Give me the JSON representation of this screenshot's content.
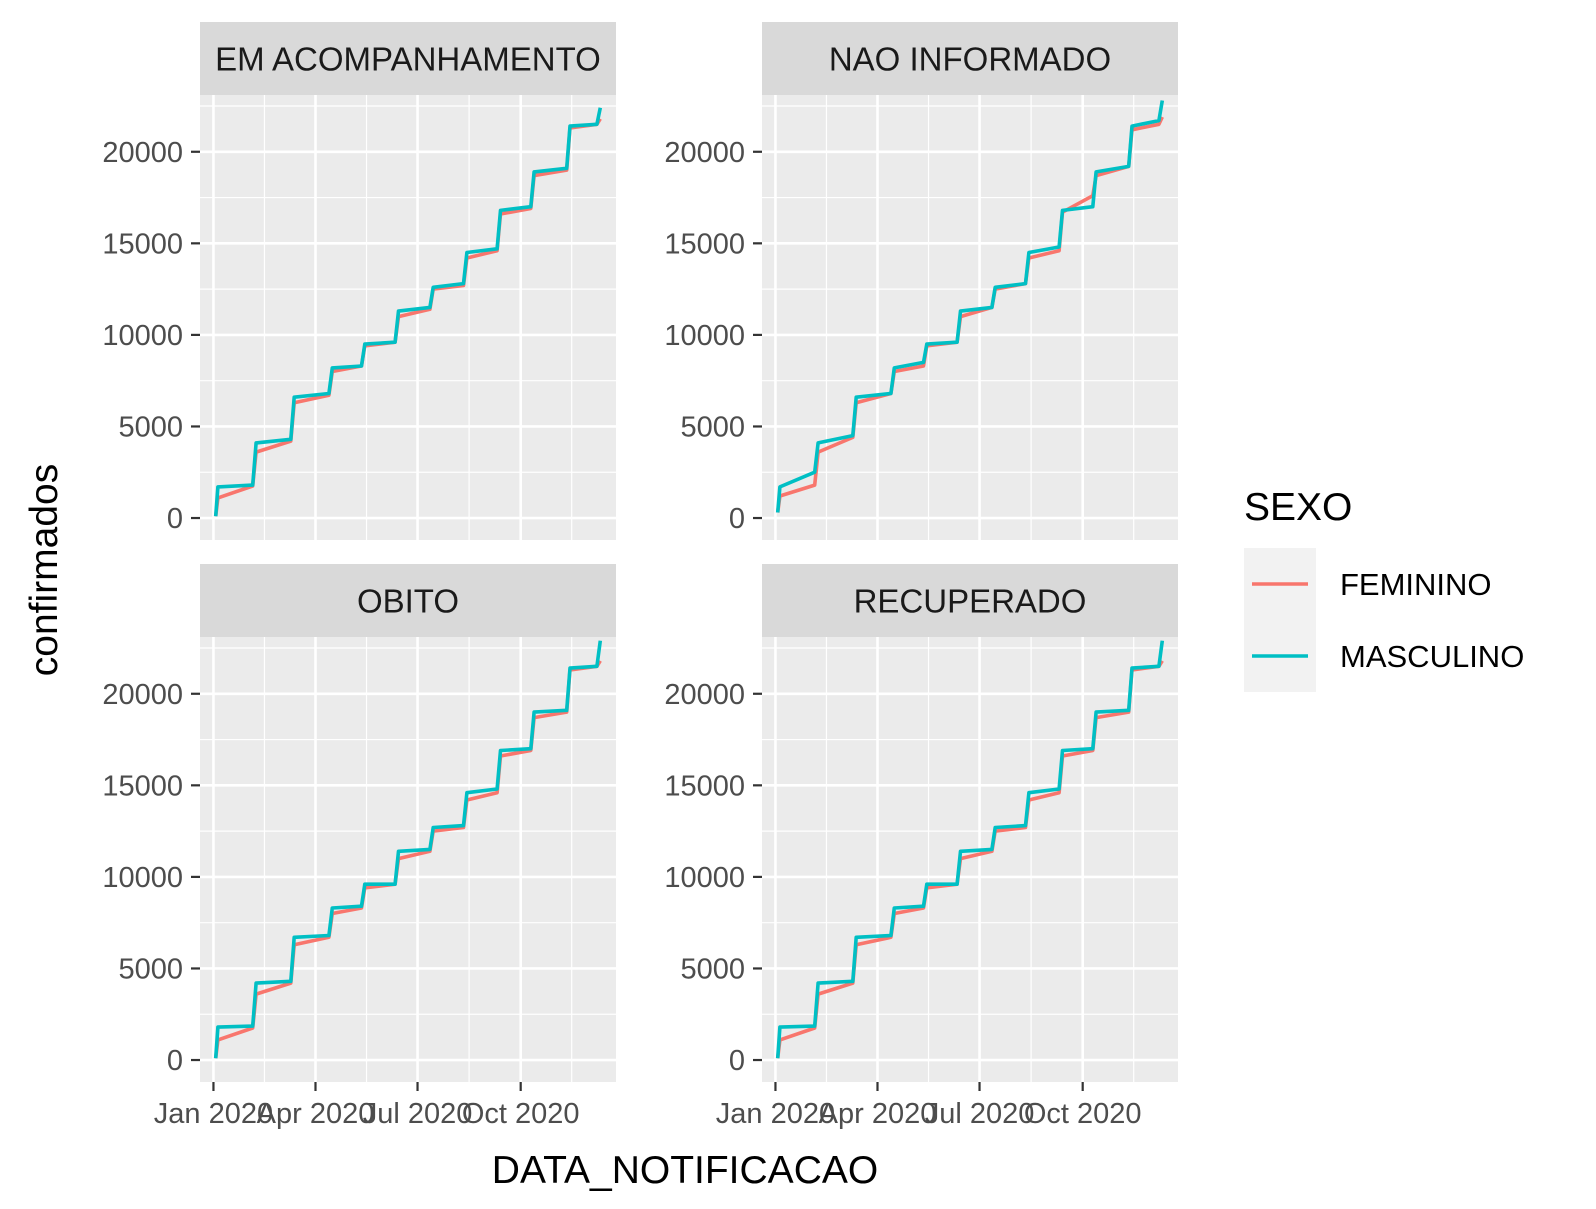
{
  "chart_data": {
    "type": "line",
    "xlabel": "DATA_NOTIFICACAO",
    "ylabel": "confirmados",
    "x_ticks": [
      "Jan 2020",
      "Apr 2020",
      "Jul 2020",
      "Oct 2020"
    ],
    "x_tick_dates": [
      "2020-01-01",
      "2020-04-01",
      "2020-07-01",
      "2020-10-01"
    ],
    "xlim": [
      "2019-12-20",
      "2020-12-25"
    ],
    "y_ticks": [
      0,
      5000,
      10000,
      15000,
      20000
    ],
    "ylim": [
      -1200,
      23100
    ],
    "grid": true,
    "legend": {
      "title": "SEXO",
      "position": "right"
    },
    "colors": {
      "FEMININO": "#F8766D",
      "MASCULINO": "#00BFC4",
      "panel_bg": "#EBEBEB",
      "strip_bg": "#D9D9D9",
      "grid": "#FFFFFF"
    },
    "x": [
      "2020-01-03",
      "2020-01-05",
      "2020-02-05",
      "2020-02-08",
      "2020-03-10",
      "2020-03-13",
      "2020-04-13",
      "2020-04-16",
      "2020-05-12",
      "2020-05-15",
      "2020-06-11",
      "2020-06-14",
      "2020-07-12",
      "2020-07-15",
      "2020-08-11",
      "2020-08-14",
      "2020-09-10",
      "2020-09-13",
      "2020-10-10",
      "2020-10-13",
      "2020-11-11",
      "2020-11-14",
      "2020-12-08",
      "2020-12-11"
    ],
    "panels": [
      {
        "title": "EM ACOMPANHAMENTO",
        "series": [
          {
            "name": "FEMININO",
            "values": [
              100,
              1100,
              1750,
              3600,
              4200,
              6300,
              6700,
              8000,
              8300,
              9400,
              9600,
              11000,
              11400,
              12500,
              12700,
              14200,
              14600,
              16600,
              16900,
              18700,
              19000,
              21300,
              21500,
              21800
            ]
          },
          {
            "name": "MASCULINO",
            "values": [
              100,
              1700,
              1800,
              4100,
              4300,
              6600,
              6800,
              8200,
              8300,
              9500,
              9600,
              11300,
              11500,
              12600,
              12800,
              14500,
              14700,
              16800,
              17000,
              18900,
              19100,
              21400,
              21500,
              22400
            ]
          }
        ]
      },
      {
        "title": "NAO INFORMADO",
        "series": [
          {
            "name": "FEMININO",
            "values": [
              300,
              1200,
              1800,
              3600,
              4400,
              6300,
              6800,
              8000,
              8300,
              9400,
              9600,
              11000,
              11500,
              12500,
              12800,
              14200,
              14600,
              16700,
              17600,
              18700,
              19200,
              21200,
              21500,
              21900
            ]
          },
          {
            "name": "MASCULINO",
            "values": [
              300,
              1700,
              2500,
              4100,
              4500,
              6600,
              6800,
              8200,
              8500,
              9500,
              9600,
              11300,
              11500,
              12600,
              12800,
              14500,
              14800,
              16800,
              17000,
              18900,
              19200,
              21400,
              21700,
              22800
            ]
          }
        ]
      },
      {
        "title": "OBITO",
        "series": [
          {
            "name": "FEMININO",
            "values": [
              100,
              1100,
              1750,
              3600,
              4200,
              6300,
              6700,
              8000,
              8300,
              9400,
              9600,
              11000,
              11400,
              12500,
              12700,
              14200,
              14600,
              16600,
              16900,
              18700,
              19000,
              21300,
              21500,
              21800
            ]
          },
          {
            "name": "MASCULINO",
            "values": [
              100,
              1800,
              1850,
              4200,
              4300,
              6700,
              6800,
              8300,
              8400,
              9600,
              9600,
              11400,
              11500,
              12700,
              12800,
              14600,
              14800,
              16900,
              17000,
              19000,
              19100,
              21400,
              21500,
              22900
            ]
          }
        ]
      },
      {
        "title": "RECUPERADO",
        "series": [
          {
            "name": "FEMININO",
            "values": [
              100,
              1100,
              1750,
              3600,
              4200,
              6300,
              6700,
              8000,
              8300,
              9400,
              9600,
              11000,
              11400,
              12500,
              12700,
              14200,
              14600,
              16600,
              16900,
              18700,
              19000,
              21300,
              21500,
              21800
            ]
          },
          {
            "name": "MASCULINO",
            "values": [
              100,
              1800,
              1850,
              4200,
              4300,
              6700,
              6800,
              8300,
              8400,
              9600,
              9600,
              11400,
              11500,
              12700,
              12800,
              14600,
              14800,
              16900,
              17000,
              19000,
              19100,
              21400,
              21500,
              22900
            ]
          }
        ]
      }
    ]
  }
}
